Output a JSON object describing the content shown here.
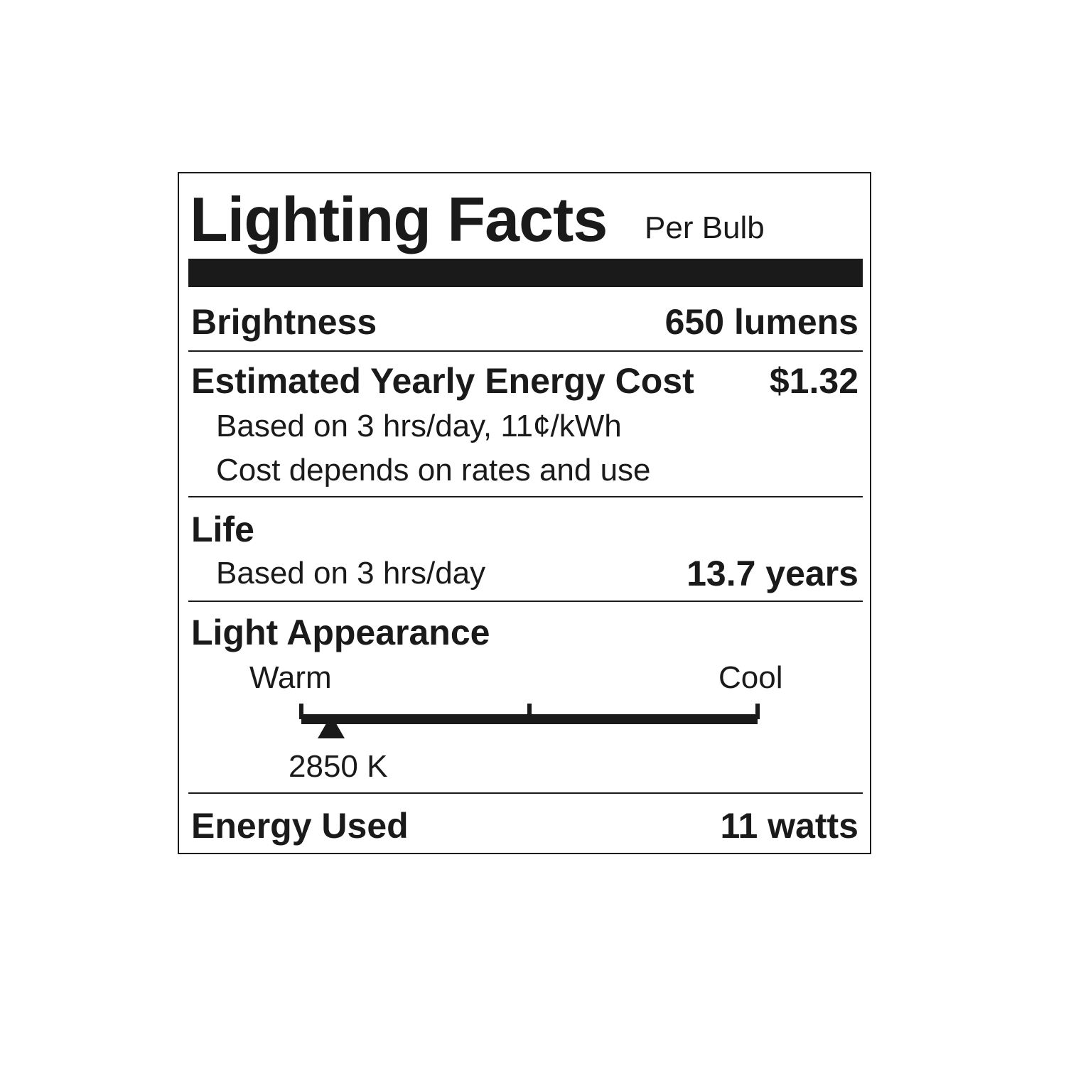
{
  "title": "Lighting Facts",
  "subtitle": "Per Bulb",
  "brightness": {
    "label": "Brightness",
    "value": "650 lumens"
  },
  "energy_cost": {
    "label": "Estimated Yearly Energy Cost",
    "value": "$1.32",
    "note1": "Based on 3 hrs/day, 11¢/kWh",
    "note2": "Cost depends on rates and use"
  },
  "life": {
    "label": "Life",
    "note": "Based on 3 hrs/day",
    "value": "13.7 years"
  },
  "light_appearance": {
    "label": "Light Appearance",
    "warm_label": "Warm",
    "cool_label": "Cool",
    "value": "2850 K",
    "marker_fraction": 0.065
  },
  "energy_used": {
    "label": "Energy Used",
    "value": "11 watts"
  }
}
